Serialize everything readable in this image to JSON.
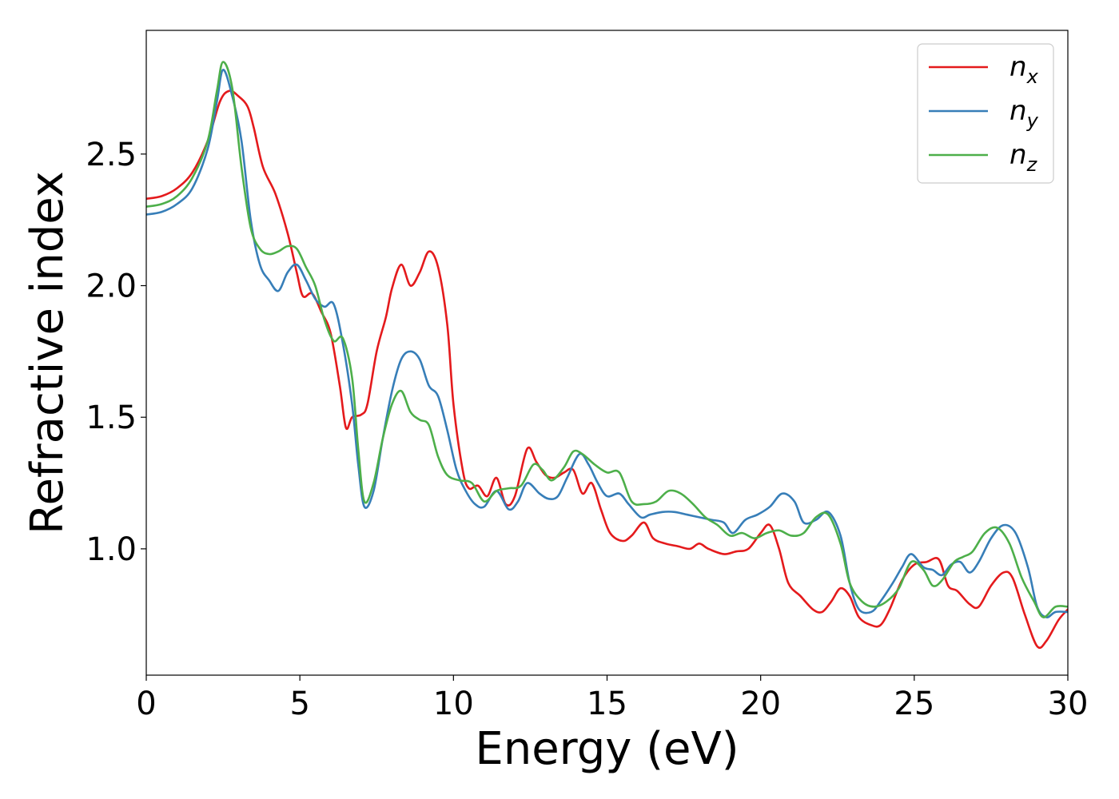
{
  "chart_data": {
    "type": "line",
    "title": "",
    "xlabel": "Energy (eV)",
    "ylabel": "Refractive index",
    "xlim": [
      0,
      30
    ],
    "ylim": [
      0.52,
      2.97
    ],
    "xticks": [
      0,
      5,
      10,
      15,
      20,
      25,
      30
    ],
    "yticks": [
      1.0,
      1.5,
      2.0,
      2.5
    ],
    "xtick_labels": [
      "0",
      "5",
      "10",
      "15",
      "20",
      "25",
      "30"
    ],
    "ytick_labels": [
      "1.0",
      "1.5",
      "2.0",
      "2.5"
    ],
    "grid": false,
    "legend_position": "top-right",
    "series": [
      {
        "name": "n",
        "subscript": "x",
        "color": "#e41a1c",
        "points": [
          [
            0,
            2.33
          ],
          [
            0.5,
            2.34
          ],
          [
            1.0,
            2.37
          ],
          [
            1.5,
            2.43
          ],
          [
            2.0,
            2.55
          ],
          [
            2.4,
            2.7
          ],
          [
            2.7,
            2.74
          ],
          [
            3.0,
            2.72
          ],
          [
            3.3,
            2.68
          ],
          [
            3.5,
            2.6
          ],
          [
            3.8,
            2.45
          ],
          [
            4.2,
            2.35
          ],
          [
            4.6,
            2.2
          ],
          [
            4.9,
            2.05
          ],
          [
            5.1,
            1.96
          ],
          [
            5.4,
            1.97
          ],
          [
            5.7,
            1.9
          ],
          [
            6.0,
            1.82
          ],
          [
            6.3,
            1.62
          ],
          [
            6.5,
            1.46
          ],
          [
            6.7,
            1.5
          ],
          [
            7.0,
            1.51
          ],
          [
            7.2,
            1.55
          ],
          [
            7.5,
            1.75
          ],
          [
            7.8,
            1.88
          ],
          [
            8.0,
            1.99
          ],
          [
            8.3,
            2.08
          ],
          [
            8.6,
            2.0
          ],
          [
            8.9,
            2.05
          ],
          [
            9.2,
            2.13
          ],
          [
            9.5,
            2.07
          ],
          [
            9.8,
            1.85
          ],
          [
            10.0,
            1.55
          ],
          [
            10.3,
            1.3
          ],
          [
            10.5,
            1.23
          ],
          [
            10.8,
            1.24
          ],
          [
            11.1,
            1.2
          ],
          [
            11.4,
            1.27
          ],
          [
            11.7,
            1.17
          ],
          [
            12.0,
            1.2
          ],
          [
            12.4,
            1.38
          ],
          [
            12.7,
            1.33
          ],
          [
            13.0,
            1.28
          ],
          [
            13.3,
            1.27
          ],
          [
            13.6,
            1.29
          ],
          [
            13.9,
            1.3
          ],
          [
            14.2,
            1.21
          ],
          [
            14.5,
            1.25
          ],
          [
            14.8,
            1.15
          ],
          [
            15.1,
            1.06
          ],
          [
            15.5,
            1.03
          ],
          [
            15.8,
            1.05
          ],
          [
            16.2,
            1.1
          ],
          [
            16.5,
            1.04
          ],
          [
            16.9,
            1.02
          ],
          [
            17.3,
            1.01
          ],
          [
            17.7,
            1.0
          ],
          [
            18.0,
            1.02
          ],
          [
            18.3,
            1.0
          ],
          [
            18.8,
            0.98
          ],
          [
            19.2,
            0.99
          ],
          [
            19.6,
            1.0
          ],
          [
            20.0,
            1.06
          ],
          [
            20.3,
            1.09
          ],
          [
            20.6,
            1.0
          ],
          [
            20.9,
            0.87
          ],
          [
            21.3,
            0.82
          ],
          [
            21.7,
            0.77
          ],
          [
            22.0,
            0.76
          ],
          [
            22.3,
            0.8
          ],
          [
            22.6,
            0.85
          ],
          [
            22.9,
            0.82
          ],
          [
            23.2,
            0.74
          ],
          [
            23.6,
            0.71
          ],
          [
            23.9,
            0.71
          ],
          [
            24.2,
            0.77
          ],
          [
            24.6,
            0.88
          ],
          [
            25.0,
            0.94
          ],
          [
            25.4,
            0.95
          ],
          [
            25.8,
            0.96
          ],
          [
            26.1,
            0.86
          ],
          [
            26.4,
            0.84
          ],
          [
            26.8,
            0.79
          ],
          [
            27.1,
            0.78
          ],
          [
            27.5,
            0.86
          ],
          [
            27.9,
            0.91
          ],
          [
            28.2,
            0.89
          ],
          [
            28.6,
            0.75
          ],
          [
            29.0,
            0.63
          ],
          [
            29.3,
            0.65
          ],
          [
            29.7,
            0.73
          ],
          [
            30.0,
            0.77
          ]
        ]
      },
      {
        "name": "n",
        "subscript": "y",
        "color": "#377eb8",
        "points": [
          [
            0,
            2.27
          ],
          [
            0.5,
            2.28
          ],
          [
            1.0,
            2.31
          ],
          [
            1.5,
            2.37
          ],
          [
            2.0,
            2.52
          ],
          [
            2.3,
            2.7
          ],
          [
            2.5,
            2.82
          ],
          [
            2.8,
            2.72
          ],
          [
            3.1,
            2.55
          ],
          [
            3.4,
            2.25
          ],
          [
            3.7,
            2.08
          ],
          [
            4.0,
            2.02
          ],
          [
            4.3,
            1.98
          ],
          [
            4.6,
            2.05
          ],
          [
            4.9,
            2.08
          ],
          [
            5.2,
            2.02
          ],
          [
            5.5,
            1.95
          ],
          [
            5.8,
            1.92
          ],
          [
            6.1,
            1.93
          ],
          [
            6.4,
            1.78
          ],
          [
            6.7,
            1.55
          ],
          [
            6.9,
            1.32
          ],
          [
            7.1,
            1.16
          ],
          [
            7.4,
            1.22
          ],
          [
            7.7,
            1.42
          ],
          [
            8.0,
            1.6
          ],
          [
            8.3,
            1.72
          ],
          [
            8.6,
            1.75
          ],
          [
            8.9,
            1.72
          ],
          [
            9.2,
            1.62
          ],
          [
            9.5,
            1.58
          ],
          [
            9.8,
            1.45
          ],
          [
            10.1,
            1.3
          ],
          [
            10.4,
            1.22
          ],
          [
            10.7,
            1.17
          ],
          [
            11.0,
            1.16
          ],
          [
            11.4,
            1.22
          ],
          [
            11.8,
            1.15
          ],
          [
            12.1,
            1.18
          ],
          [
            12.4,
            1.25
          ],
          [
            12.8,
            1.21
          ],
          [
            13.1,
            1.19
          ],
          [
            13.4,
            1.2
          ],
          [
            13.7,
            1.27
          ],
          [
            14.1,
            1.36
          ],
          [
            14.4,
            1.32
          ],
          [
            14.7,
            1.25
          ],
          [
            15.0,
            1.2
          ],
          [
            15.4,
            1.21
          ],
          [
            15.7,
            1.17
          ],
          [
            16.1,
            1.12
          ],
          [
            16.4,
            1.13
          ],
          [
            16.8,
            1.14
          ],
          [
            17.2,
            1.14
          ],
          [
            17.6,
            1.13
          ],
          [
            18.0,
            1.12
          ],
          [
            18.4,
            1.11
          ],
          [
            18.8,
            1.1
          ],
          [
            19.1,
            1.06
          ],
          [
            19.5,
            1.11
          ],
          [
            19.9,
            1.13
          ],
          [
            20.3,
            1.16
          ],
          [
            20.7,
            1.21
          ],
          [
            21.1,
            1.18
          ],
          [
            21.4,
            1.1
          ],
          [
            21.8,
            1.11
          ],
          [
            22.2,
            1.14
          ],
          [
            22.6,
            1.05
          ],
          [
            22.9,
            0.87
          ],
          [
            23.2,
            0.77
          ],
          [
            23.6,
            0.76
          ],
          [
            23.9,
            0.8
          ],
          [
            24.3,
            0.87
          ],
          [
            24.6,
            0.93
          ],
          [
            24.9,
            0.98
          ],
          [
            25.3,
            0.93
          ],
          [
            25.6,
            0.92
          ],
          [
            25.9,
            0.9
          ],
          [
            26.2,
            0.94
          ],
          [
            26.5,
            0.95
          ],
          [
            26.8,
            0.91
          ],
          [
            27.1,
            0.95
          ],
          [
            27.5,
            1.04
          ],
          [
            27.9,
            1.09
          ],
          [
            28.3,
            1.06
          ],
          [
            28.7,
            0.93
          ],
          [
            29.0,
            0.78
          ],
          [
            29.3,
            0.74
          ],
          [
            29.6,
            0.76
          ],
          [
            30.0,
            0.76
          ]
        ]
      },
      {
        "name": "n",
        "subscript": "z",
        "color": "#4daf4a",
        "points": [
          [
            0,
            2.3
          ],
          [
            0.5,
            2.31
          ],
          [
            1.0,
            2.34
          ],
          [
            1.5,
            2.41
          ],
          [
            2.0,
            2.55
          ],
          [
            2.3,
            2.74
          ],
          [
            2.5,
            2.85
          ],
          [
            2.8,
            2.75
          ],
          [
            3.1,
            2.45
          ],
          [
            3.4,
            2.22
          ],
          [
            3.7,
            2.14
          ],
          [
            4.0,
            2.12
          ],
          [
            4.3,
            2.13
          ],
          [
            4.6,
            2.15
          ],
          [
            4.9,
            2.14
          ],
          [
            5.2,
            2.07
          ],
          [
            5.5,
            2.0
          ],
          [
            5.8,
            1.87
          ],
          [
            6.1,
            1.79
          ],
          [
            6.4,
            1.8
          ],
          [
            6.7,
            1.65
          ],
          [
            6.9,
            1.38
          ],
          [
            7.1,
            1.18
          ],
          [
            7.4,
            1.25
          ],
          [
            7.7,
            1.42
          ],
          [
            8.0,
            1.55
          ],
          [
            8.3,
            1.6
          ],
          [
            8.6,
            1.52
          ],
          [
            8.9,
            1.49
          ],
          [
            9.2,
            1.47
          ],
          [
            9.5,
            1.35
          ],
          [
            9.8,
            1.28
          ],
          [
            10.2,
            1.26
          ],
          [
            10.6,
            1.25
          ],
          [
            11.0,
            1.18
          ],
          [
            11.4,
            1.22
          ],
          [
            11.8,
            1.23
          ],
          [
            12.2,
            1.24
          ],
          [
            12.6,
            1.32
          ],
          [
            12.9,
            1.3
          ],
          [
            13.2,
            1.26
          ],
          [
            13.6,
            1.31
          ],
          [
            13.9,
            1.37
          ],
          [
            14.2,
            1.36
          ],
          [
            14.6,
            1.32
          ],
          [
            15.0,
            1.29
          ],
          [
            15.4,
            1.29
          ],
          [
            15.8,
            1.18
          ],
          [
            16.2,
            1.17
          ],
          [
            16.6,
            1.18
          ],
          [
            17.0,
            1.22
          ],
          [
            17.4,
            1.21
          ],
          [
            17.8,
            1.17
          ],
          [
            18.2,
            1.12
          ],
          [
            18.6,
            1.09
          ],
          [
            19.0,
            1.05
          ],
          [
            19.4,
            1.06
          ],
          [
            19.8,
            1.04
          ],
          [
            20.2,
            1.06
          ],
          [
            20.6,
            1.07
          ],
          [
            21.0,
            1.05
          ],
          [
            21.4,
            1.06
          ],
          [
            21.8,
            1.12
          ],
          [
            22.2,
            1.13
          ],
          [
            22.6,
            1.02
          ],
          [
            22.9,
            0.87
          ],
          [
            23.3,
            0.8
          ],
          [
            23.7,
            0.78
          ],
          [
            24.1,
            0.8
          ],
          [
            24.5,
            0.85
          ],
          [
            24.9,
            0.95
          ],
          [
            25.3,
            0.92
          ],
          [
            25.6,
            0.86
          ],
          [
            25.9,
            0.88
          ],
          [
            26.3,
            0.95
          ],
          [
            26.6,
            0.97
          ],
          [
            26.9,
            0.99
          ],
          [
            27.3,
            1.06
          ],
          [
            27.7,
            1.08
          ],
          [
            28.1,
            1.02
          ],
          [
            28.5,
            0.89
          ],
          [
            28.9,
            0.8
          ],
          [
            29.2,
            0.74
          ],
          [
            29.6,
            0.78
          ],
          [
            30.0,
            0.78
          ]
        ]
      }
    ]
  }
}
